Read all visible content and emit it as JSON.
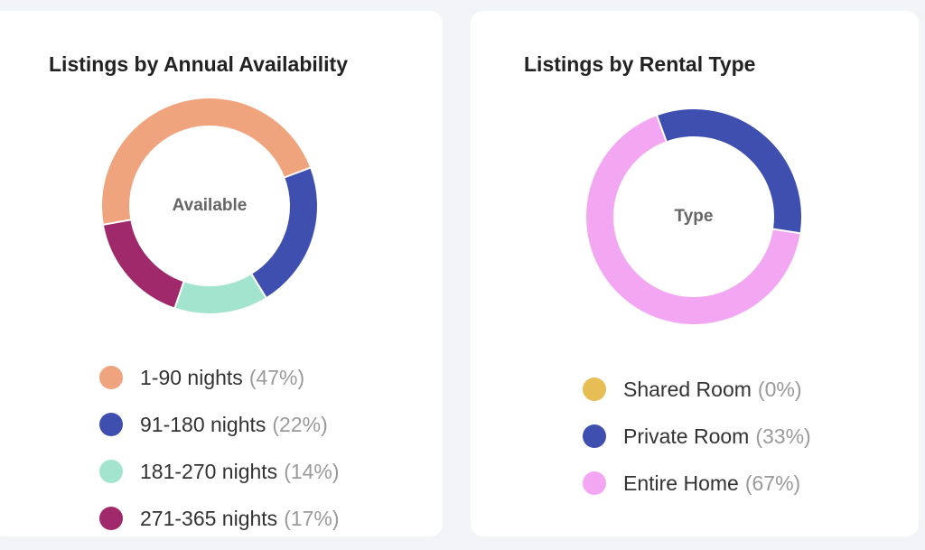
{
  "chart_data": [
    {
      "type": "pie",
      "title": "Listings by Annual Availability",
      "center_label": "Available",
      "slices": [
        {
          "label": "1-90 nights",
          "percent_text": "(47%)",
          "value": 47,
          "color": "#f0a47e"
        },
        {
          "label": "91-180 nights",
          "percent_text": "(22%)",
          "value": 22,
          "color": "#3f4fb0"
        },
        {
          "label": "181-270 nights",
          "percent_text": "(14%)",
          "value": 14,
          "color": "#a3e4cf"
        },
        {
          "label": "271-365 nights",
          "percent_text": "(17%)",
          "value": 17,
          "color": "#a0296c"
        }
      ],
      "legend_position": "bottom"
    },
    {
      "type": "pie",
      "title": "Listings by Rental Type",
      "center_label": "Type",
      "slices": [
        {
          "label": "Shared Room",
          "percent_text": "(0%)",
          "value": 0,
          "color": "#e7bd56"
        },
        {
          "label": "Private Room",
          "percent_text": "(33%)",
          "value": 33,
          "color": "#3f4fb0"
        },
        {
          "label": "Entire Home",
          "percent_text": "(67%)",
          "value": 67,
          "color": "#f3a7f3"
        }
      ],
      "legend_position": "bottom"
    }
  ]
}
